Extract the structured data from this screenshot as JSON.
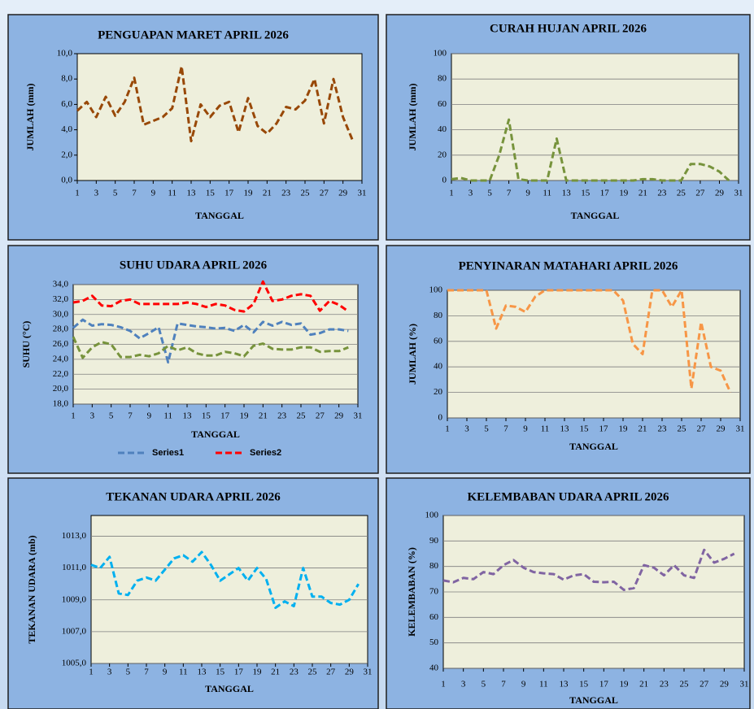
{
  "chart_data": [
    {
      "type": "line",
      "title": "PENGUAPAN MARET APRIL 2026",
      "xlabel": "TANGGAL",
      "ylabel": "JUMLAH (mm)",
      "x": [
        1,
        2,
        3,
        4,
        5,
        6,
        7,
        8,
        9,
        10,
        11,
        12,
        13,
        14,
        15,
        16,
        17,
        18,
        19,
        20,
        21,
        22,
        23,
        24,
        25,
        26,
        27,
        28,
        29,
        30
      ],
      "xlim": [
        1,
        31
      ],
      "xticks": [
        1,
        3,
        5,
        7,
        9,
        11,
        13,
        15,
        17,
        19,
        21,
        23,
        25,
        27,
        29,
        31
      ],
      "ylim": [
        0,
        10
      ],
      "yticks": [
        {
          "value": 0,
          "label": "0,0"
        },
        {
          "value": 2,
          "label": "2,0"
        },
        {
          "value": 4,
          "label": "4,0"
        },
        {
          "value": 6,
          "label": "6,0"
        },
        {
          "value": 8,
          "label": "8,0"
        },
        {
          "value": 10,
          "label": "10,0"
        }
      ],
      "grid": false,
      "series": [
        {
          "color": "#984807",
          "values": [
            5.5,
            6.2,
            5.0,
            6.6,
            5.1,
            6.2,
            8.1,
            4.4,
            4.7,
            5.0,
            5.7,
            9.0,
            3.1,
            6.0,
            5.0,
            5.9,
            6.2,
            3.8,
            6.5,
            4.3,
            3.7,
            4.5,
            5.8,
            5.6,
            6.3,
            8.0,
            4.5,
            8.0,
            5.0,
            3.2
          ]
        }
      ]
    },
    {
      "type": "line",
      "title": "CURAH HUJAN APRIL 2026",
      "xlabel": "TANGGAL",
      "ylabel": "JUMLAH (mm)",
      "x": [
        1,
        2,
        3,
        4,
        5,
        6,
        7,
        8,
        9,
        10,
        11,
        12,
        13,
        14,
        15,
        16,
        17,
        18,
        19,
        20,
        21,
        22,
        23,
        24,
        25,
        26,
        27,
        28,
        29,
        30
      ],
      "xlim": [
        1,
        31
      ],
      "xticks": [
        1,
        3,
        5,
        7,
        9,
        11,
        13,
        15,
        17,
        19,
        21,
        23,
        25,
        27,
        29,
        31
      ],
      "ylim": [
        0,
        100
      ],
      "yticks": [
        0,
        20,
        40,
        60,
        80,
        100
      ],
      "grid": true,
      "series": [
        {
          "color": "#77933c",
          "values": [
            1,
            2,
            0,
            0,
            0,
            20,
            48,
            1,
            0,
            0,
            0,
            33,
            0,
            0,
            0,
            0,
            0,
            0,
            0,
            0,
            1,
            1,
            0,
            0,
            0,
            13,
            13,
            11,
            7,
            0
          ]
        }
      ]
    },
    {
      "type": "line",
      "title": "SUHU UDARA APRIL 2026",
      "xlabel": "TANGGAL",
      "ylabel": "SUHU (°C)",
      "x": [
        1,
        2,
        3,
        4,
        5,
        6,
        7,
        8,
        9,
        10,
        11,
        12,
        13,
        14,
        15,
        16,
        17,
        18,
        19,
        20,
        21,
        22,
        23,
        24,
        25,
        26,
        27,
        28,
        29,
        30
      ],
      "xlim": [
        1,
        31
      ],
      "xticks": [
        1,
        3,
        5,
        7,
        9,
        11,
        13,
        15,
        17,
        19,
        21,
        23,
        25,
        27,
        29,
        31
      ],
      "ylim": [
        18,
        34
      ],
      "yticks": [
        {
          "value": 18,
          "label": "18,0"
        },
        {
          "value": 20,
          "label": "20,0"
        },
        {
          "value": 22,
          "label": "22,0"
        },
        {
          "value": 24,
          "label": "24,0"
        },
        {
          "value": 26,
          "label": "26,0"
        },
        {
          "value": 28,
          "label": "28,0"
        },
        {
          "value": 30,
          "label": "30,0"
        },
        {
          "value": 32,
          "label": "32,0"
        },
        {
          "value": 34,
          "label": "34,0"
        }
      ],
      "grid": true,
      "legend": "bottom",
      "series": [
        {
          "name": "Series1",
          "color": "#4f81bd",
          "values": [
            28.2,
            29.3,
            28.5,
            28.7,
            28.6,
            28.3,
            27.8,
            26.8,
            27.5,
            28.3,
            23.6,
            28.8,
            28.6,
            28.4,
            28.3,
            28.1,
            28.2,
            27.8,
            28.6,
            27.6,
            29.0,
            28.5,
            29.0,
            28.6,
            28.8,
            27.3,
            27.5,
            28.0,
            28.0,
            27.8
          ]
        },
        {
          "name": "Series2",
          "color": "#ff0000",
          "values": [
            31.6,
            31.8,
            32.5,
            31.2,
            31.1,
            31.8,
            32.0,
            31.4,
            31.4,
            31.4,
            31.4,
            31.4,
            31.6,
            31.4,
            31.0,
            31.4,
            31.2,
            30.6,
            30.4,
            31.4,
            34.4,
            31.8,
            32.0,
            32.5,
            32.7,
            32.5,
            30.5,
            31.8,
            31.3,
            30.4
          ]
        },
        {
          "color": "#77933c",
          "values": [
            27.0,
            24.2,
            25.6,
            26.3,
            26.0,
            24.3,
            24.3,
            24.6,
            24.4,
            24.8,
            25.8,
            25.2,
            25.6,
            24.8,
            24.5,
            24.5,
            25.0,
            24.8,
            24.4,
            25.8,
            26.1,
            25.4,
            25.3,
            25.3,
            25.6,
            25.6,
            25.0,
            25.1,
            25.1,
            25.6
          ]
        }
      ]
    },
    {
      "type": "line",
      "title": "PENYINARAN MATAHARI APRIL 2026",
      "xlabel": "TANGGAL",
      "ylabel": "JUMLAH (%)",
      "x": [
        1,
        2,
        3,
        4,
        5,
        6,
        7,
        8,
        9,
        10,
        11,
        12,
        13,
        14,
        15,
        16,
        17,
        18,
        19,
        20,
        21,
        22,
        23,
        24,
        25,
        26,
        27,
        28,
        29,
        30
      ],
      "xlim": [
        1,
        31
      ],
      "xticks": [
        1,
        3,
        5,
        7,
        9,
        11,
        13,
        15,
        17,
        19,
        21,
        23,
        25,
        27,
        29,
        31
      ],
      "ylim": [
        0,
        100
      ],
      "yticks": [
        0,
        20,
        40,
        60,
        80,
        100
      ],
      "grid": true,
      "series": [
        {
          "color": "#f79646",
          "values": [
            100,
            100,
            100,
            100,
            100,
            70,
            88,
            87,
            83,
            95,
            100,
            100,
            100,
            100,
            100,
            100,
            100,
            100,
            92,
            58,
            50,
            100,
            100,
            87,
            100,
            23,
            75,
            40,
            37,
            20
          ]
        }
      ]
    },
    {
      "type": "line",
      "title": "TEKANAN UDARA APRIL 2026",
      "xlabel": "TANGGAL",
      "ylabel": "TEKANAN UDARA (mb)",
      "x": [
        1,
        2,
        3,
        4,
        5,
        6,
        7,
        8,
        9,
        10,
        11,
        12,
        13,
        14,
        15,
        16,
        17,
        18,
        19,
        20,
        21,
        22,
        23,
        24,
        25,
        26,
        27,
        28,
        29,
        30
      ],
      "xlim": [
        1,
        31
      ],
      "xticks": [
        1,
        3,
        5,
        7,
        9,
        11,
        13,
        15,
        17,
        19,
        21,
        23,
        25,
        27,
        29,
        31
      ],
      "ylim": [
        1005,
        1014.3
      ],
      "yticks": [
        {
          "value": 1005,
          "label": "1005,0"
        },
        {
          "value": 1007,
          "label": "1007,0"
        },
        {
          "value": 1009,
          "label": "1009,0"
        },
        {
          "value": 1011,
          "label": "1011,0"
        },
        {
          "value": 1013,
          "label": "1013,0"
        }
      ],
      "grid": true,
      "series": [
        {
          "color": "#00b0f0",
          "values": [
            1011.2,
            1011.0,
            1011.7,
            1009.4,
            1009.3,
            1010.2,
            1010.4,
            1010.2,
            1010.9,
            1011.6,
            1011.8,
            1011.4,
            1012.0,
            1011.2,
            1010.2,
            1010.6,
            1011.0,
            1010.2,
            1011.0,
            1010.3,
            1008.5,
            1008.9,
            1008.6,
            1011.0,
            1009.2,
            1009.2,
            1008.8,
            1008.7,
            1009.0,
            1010.0
          ]
        }
      ]
    },
    {
      "type": "line",
      "title": "KELEMBABAN UDARA APRIL 2026",
      "xlabel": "TANGGAL",
      "ylabel": "KELEMBABAN (%)",
      "x": [
        1,
        2,
        3,
        4,
        5,
        6,
        7,
        8,
        9,
        10,
        11,
        12,
        13,
        14,
        15,
        16,
        17,
        18,
        19,
        20,
        21,
        22,
        23,
        24,
        25,
        26,
        27,
        28,
        29,
        30
      ],
      "xlim": [
        1,
        31
      ],
      "xticks": [
        1,
        3,
        5,
        7,
        9,
        11,
        13,
        15,
        17,
        19,
        21,
        23,
        25,
        27,
        29,
        31
      ],
      "ylim": [
        40,
        100
      ],
      "yticks": [
        40,
        50,
        60,
        70,
        80,
        90,
        100
      ],
      "grid": true,
      "series": [
        {
          "color": "#8064a2",
          "values": [
            74.5,
            73.8,
            75.5,
            75.0,
            77.8,
            77.0,
            80.5,
            82.5,
            79.5,
            77.8,
            77.3,
            77.0,
            74.8,
            76.5,
            77.0,
            74.0,
            73.8,
            74.0,
            70.8,
            71.5,
            80.5,
            79.5,
            76.5,
            80.5,
            76.5,
            75.5,
            86.5,
            81.5,
            83.0,
            85.0
          ]
        }
      ]
    }
  ]
}
